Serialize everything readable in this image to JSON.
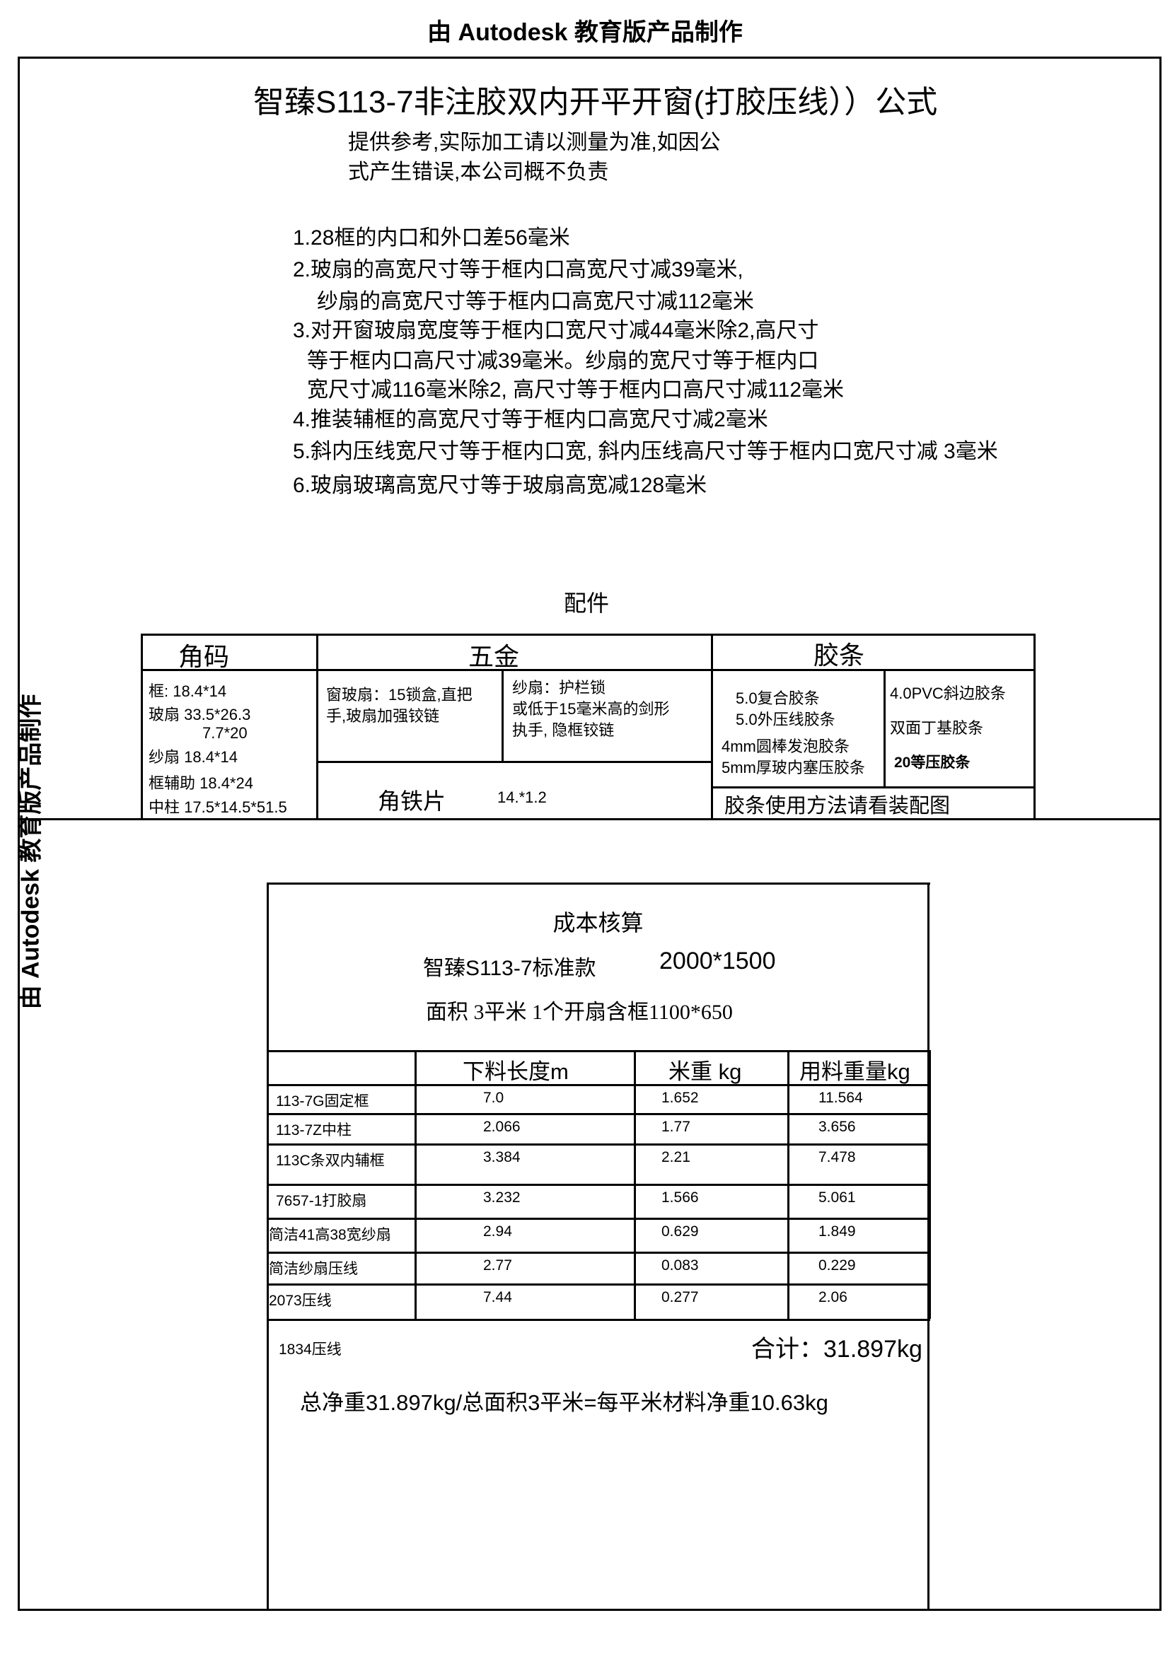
{
  "watermark": "由 Autodesk 教育版产品制作",
  "title": "智臻S113-7非注胶双内开平开窗(打胶压线））公式",
  "disclaimer": [
    "提供参考,实际加工请以测量为准,如因公",
    "式产生错误,本公司概不负责"
  ],
  "rules": [
    "1.28框的内口和外口差56毫米",
    "2.玻扇的高宽尺寸等于框内口高宽尺寸减39毫米,",
    "纱扇的高宽尺寸等于框内口高宽尺寸减112毫米",
    "3.对开窗玻扇宽度等于框内口宽尺寸减44毫米除2,高尺寸",
    "等于框内口高尺寸减39毫米。纱扇的宽尺寸等于框内口",
    "宽尺寸减116毫米除2, 高尺寸等于框内口高尺寸减112毫米",
    "4.推装辅框的高宽尺寸等于框内口高宽尺寸减2毫米",
    "5.斜内压线宽尺寸等于框内口宽, 斜内压线高尺寸等于框内口宽尺寸减 3毫米",
    "6.玻扇玻璃高宽尺寸等于玻扇高宽减128毫米"
  ],
  "accessories": {
    "heading": "配件",
    "headers": [
      "角码",
      "五金",
      "胶条"
    ],
    "corner": [
      "框:   18.4*14",
      "玻扇  33.5*26.3",
      "7.7*20",
      "纱扇  18.4*14",
      "框辅助 18.4*24",
      "中柱 17.5*14.5*51.5"
    ],
    "hardware_glass": [
      "窗玻扇：15锁盒,直把",
      "手,玻扇加强铰链"
    ],
    "hardware_screen": [
      "纱扇：护栏锁",
      "或低于15毫米高的剑形",
      "执手, 隐框铰链"
    ],
    "angle_iron": {
      "label": "角铁片",
      "value": "14.*1.2"
    },
    "strips_left": [
      "5.0复合胶条",
      "5.0外压线胶条",
      "4mm圆棒发泡胶条",
      "5mm厚玻内塞压胶条"
    ],
    "strips_right": [
      "4.0PVC斜边胶条",
      "双面丁基胶条",
      "20等压胶条"
    ],
    "strips_note": "胶条使用方法请看装配图"
  },
  "cost": {
    "title": "成本核算",
    "model": "智臻S113-7标准款",
    "size": "2000*1500",
    "area_line": "面积   3平米  1个开扇含框1100*650",
    "headers": [
      "",
      "下料长度m",
      "米重 kg",
      "用料重量kg"
    ],
    "rows": [
      [
        "113-7G固定框",
        "7.0",
        "1.652",
        "11.564"
      ],
      [
        "113-7Z中柱",
        "2.066",
        "1.77",
        "3.656"
      ],
      [
        "113C条双内辅框",
        "3.384",
        "2.21",
        "7.478"
      ],
      [
        "7657-1打胶扇",
        "3.232",
        "1.566",
        "5.061"
      ],
      [
        "简洁41高38宽纱扇",
        "2.94",
        "0.629",
        "1.849"
      ],
      [
        "简洁纱扇压线",
        "2.77",
        "0.083",
        "0.229"
      ],
      [
        "2073压线",
        "7.44",
        "0.277",
        "2.06"
      ]
    ],
    "extra_item": "1834压线",
    "total": "合计：31.897kg",
    "summary": "总净重31.897kg/总面积3平米=每平米材料净重10.63kg"
  }
}
